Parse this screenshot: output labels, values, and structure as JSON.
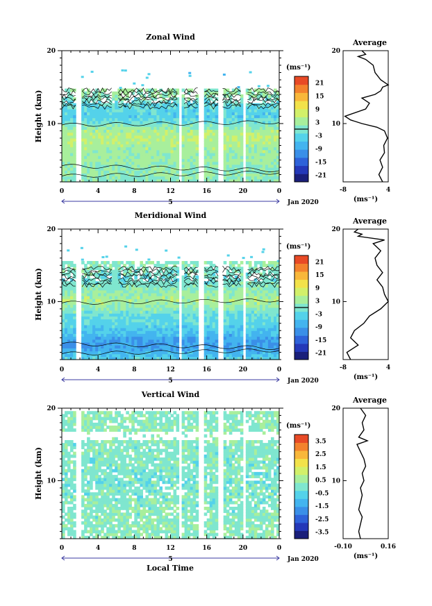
{
  "x_label": "Local Time",
  "date_label": "Jan 2020",
  "x_ticks": [
    "0",
    "4",
    "8",
    "12",
    "16",
    "20",
    "0"
  ],
  "day_label": "5",
  "y_label": "Height (km)",
  "colorbar_unit": "(ms⁻¹)",
  "avg_unit": "(ms⁻¹)",
  "colors": {
    "palette": [
      "#1a1f7a",
      "#2438b8",
      "#2e62d9",
      "#3a8fe8",
      "#43b4ef",
      "#54d2ea",
      "#7fe6cf",
      "#a8ef9c",
      "#d2f06a",
      "#f2e24a",
      "#f8b73a",
      "#f3822d",
      "#e84a26"
    ]
  },
  "chart_data": [
    {
      "type": "heatmap",
      "title": "Zonal Wind",
      "xlim": [
        0,
        24
      ],
      "ylim": [
        2,
        20
      ],
      "y_ticks": [
        "10",
        "20"
      ],
      "colorbar": {
        "range": [
          -24,
          24
        ],
        "ticks": [
          "21",
          "15",
          "9",
          "3",
          "-3",
          "-9",
          "-15",
          "-21"
        ]
      },
      "data_gaps_hours": [
        [
          1.6,
          2.0
        ],
        [
          5.7,
          6.0
        ],
        [
          12.8,
          13.3
        ],
        [
          15.2,
          15.7
        ],
        [
          17.3,
          17.7
        ],
        [
          19.9,
          20.3
        ]
      ],
      "profile_by_height_km": [
        {
          "h": 2,
          "v": 1
        },
        {
          "h": 3,
          "v": 2
        },
        {
          "h": 4,
          "v": 1
        },
        {
          "h": 5,
          "v": 3
        },
        {
          "h": 6,
          "v": 3
        },
        {
          "h": 7,
          "v": 4
        },
        {
          "h": 8,
          "v": 5
        },
        {
          "h": 9,
          "v": 4
        },
        {
          "h": 10,
          "v": 0
        },
        {
          "h": 11,
          "v": -4
        },
        {
          "h": 12,
          "v": -3
        },
        {
          "h": 13,
          "v": -1
        },
        {
          "h": 14,
          "v": 2
        },
        {
          "h": 15,
          "v": 4
        }
      ],
      "average": {
        "title": "Average",
        "x_ticks": [
          "-8",
          "4"
        ],
        "xlim": [
          -8,
          4
        ],
        "y_ticks": [
          "10",
          "20"
        ],
        "points": [
          {
            "h": 2,
            "v": 2.5
          },
          {
            "h": 3,
            "v": 1.5
          },
          {
            "h": 4,
            "v": 2.5
          },
          {
            "h": 5,
            "v": 1.8
          },
          {
            "h": 6,
            "v": 3.0
          },
          {
            "h": 7,
            "v": 2.8
          },
          {
            "h": 8,
            "v": 3.8
          },
          {
            "h": 9,
            "v": 3.0
          },
          {
            "h": 9.5,
            "v": 1.0
          },
          {
            "h": 10,
            "v": -3.0
          },
          {
            "h": 10.5,
            "v": -6.0
          },
          {
            "h": 11,
            "v": -7.5
          },
          {
            "h": 12,
            "v": -2.0
          },
          {
            "h": 12.8,
            "v": -1.0
          },
          {
            "h": 13.5,
            "v": -3.0
          },
          {
            "h": 14,
            "v": 0.5
          },
          {
            "h": 14.5,
            "v": 2.0
          },
          {
            "h": 15,
            "v": 2.5
          },
          {
            "h": 15.3,
            "v": 4.0
          },
          {
            "h": 16,
            "v": 2.0
          },
          {
            "h": 17,
            "v": 0.5
          },
          {
            "h": 18,
            "v": 0.0
          },
          {
            "h": 18.8,
            "v": -2.0
          },
          {
            "h": 19.2,
            "v": -4.0
          },
          {
            "h": 19.5,
            "v": -2.0
          },
          {
            "h": 20,
            "v": -3.0
          }
        ]
      }
    },
    {
      "type": "heatmap",
      "title": "Meridional Wind",
      "xlim": [
        0,
        24
      ],
      "ylim": [
        2,
        20
      ],
      "y_ticks": [
        "10",
        "20"
      ],
      "colorbar": {
        "range": [
          -24,
          24
        ],
        "ticks": [
          "21",
          "15",
          "9",
          "3",
          "-3",
          "-9",
          "-15",
          "-21"
        ]
      },
      "data_gaps_hours": [
        [
          1.6,
          2.0
        ],
        [
          5.7,
          6.0
        ],
        [
          12.8,
          13.3
        ],
        [
          15.2,
          15.7
        ],
        [
          17.3,
          17.7
        ],
        [
          19.9,
          20.3
        ]
      ],
      "profile_by_height_km": [
        {
          "h": 2,
          "v": -3
        },
        {
          "h": 3,
          "v": -7
        },
        {
          "h": 4,
          "v": -10
        },
        {
          "h": 5,
          "v": -8
        },
        {
          "h": 6,
          "v": -5
        },
        {
          "h": 7,
          "v": -3
        },
        {
          "h": 8,
          "v": -2
        },
        {
          "h": 9,
          "v": 1
        },
        {
          "h": 10,
          "v": 4
        },
        {
          "h": 11,
          "v": 3
        },
        {
          "h": 12,
          "v": 1
        },
        {
          "h": 13,
          "v": -1
        },
        {
          "h": 14,
          "v": 0
        },
        {
          "h": 15,
          "v": 1
        }
      ],
      "average": {
        "title": "Average",
        "x_ticks": [
          "-8",
          "4"
        ],
        "xlim": [
          -8,
          4
        ],
        "y_ticks": [
          "10",
          "20"
        ],
        "points": [
          {
            "h": 2,
            "v": -6.0
          },
          {
            "h": 3,
            "v": -7.0
          },
          {
            "h": 4,
            "v": -4.0
          },
          {
            "h": 5,
            "v": -6.0
          },
          {
            "h": 6,
            "v": -5.0
          },
          {
            "h": 7,
            "v": -2.5
          },
          {
            "h": 8,
            "v": -1.0
          },
          {
            "h": 9,
            "v": 2.0
          },
          {
            "h": 10,
            "v": 4.0
          },
          {
            "h": 11,
            "v": 3.0
          },
          {
            "h": 12,
            "v": 2.5
          },
          {
            "h": 13,
            "v": 1.0
          },
          {
            "h": 14,
            "v": 2.5
          },
          {
            "h": 15,
            "v": 1.0
          },
          {
            "h": 16,
            "v": 0.5
          },
          {
            "h": 17,
            "v": 2.0
          },
          {
            "h": 17.5,
            "v": 1.0
          },
          {
            "h": 18,
            "v": 0.0
          },
          {
            "h": 18.5,
            "v": 3.0
          },
          {
            "h": 19,
            "v": -4.0
          },
          {
            "h": 19.3,
            "v": -3.0
          },
          {
            "h": 19.6,
            "v": -5.0
          },
          {
            "h": 20,
            "v": -4.0
          }
        ]
      }
    },
    {
      "type": "heatmap",
      "title": "Vertical Wind",
      "xlim": [
        0,
        24
      ],
      "ylim": [
        2,
        20
      ],
      "y_ticks": [
        "10",
        "20"
      ],
      "colorbar": {
        "range": [
          -4,
          4
        ],
        "ticks": [
          "3.5",
          "2.5",
          "1.5",
          "0.5",
          "-0.5",
          "-1.5",
          "-2.5",
          "-3.5"
        ]
      },
      "data_gaps_hours": [
        [
          1.6,
          2.0
        ],
        [
          5.7,
          6.0
        ],
        [
          12.8,
          13.3
        ],
        [
          15.2,
          15.7
        ],
        [
          17.3,
          17.7
        ],
        [
          19.9,
          20.3
        ]
      ],
      "profile_by_height_km": [
        {
          "h": 2,
          "v": 0.2
        },
        {
          "h": 6,
          "v": 0.1
        },
        {
          "h": 10,
          "v": 0.0
        },
        {
          "h": 14,
          "v": 0.1
        },
        {
          "h": 18,
          "v": 0.2
        }
      ],
      "average": {
        "title": "Average",
        "x_ticks": [
          "-0.10",
          "0.16"
        ],
        "xlim": [
          -0.1,
          0.16
        ],
        "y_ticks": [
          "10",
          "20"
        ],
        "points": [
          {
            "h": 2,
            "v": 0.0
          },
          {
            "h": 3,
            "v": -0.01
          },
          {
            "h": 4,
            "v": 0.0
          },
          {
            "h": 5,
            "v": 0.01
          },
          {
            "h": 6,
            "v": -0.01
          },
          {
            "h": 7,
            "v": 0.0
          },
          {
            "h": 8,
            "v": 0.01
          },
          {
            "h": 9,
            "v": 0.0
          },
          {
            "h": 10,
            "v": 0.02
          },
          {
            "h": 11,
            "v": 0.01
          },
          {
            "h": 12,
            "v": 0.03
          },
          {
            "h": 13,
            "v": 0.02
          },
          {
            "h": 14,
            "v": 0.0
          },
          {
            "h": 15,
            "v": -0.02
          },
          {
            "h": 15.5,
            "v": 0.04
          },
          {
            "h": 16,
            "v": -0.01
          },
          {
            "h": 17,
            "v": 0.02
          },
          {
            "h": 18,
            "v": 0.01
          },
          {
            "h": 19,
            "v": 0.03
          },
          {
            "h": 20,
            "v": 0.0
          }
        ]
      }
    }
  ]
}
